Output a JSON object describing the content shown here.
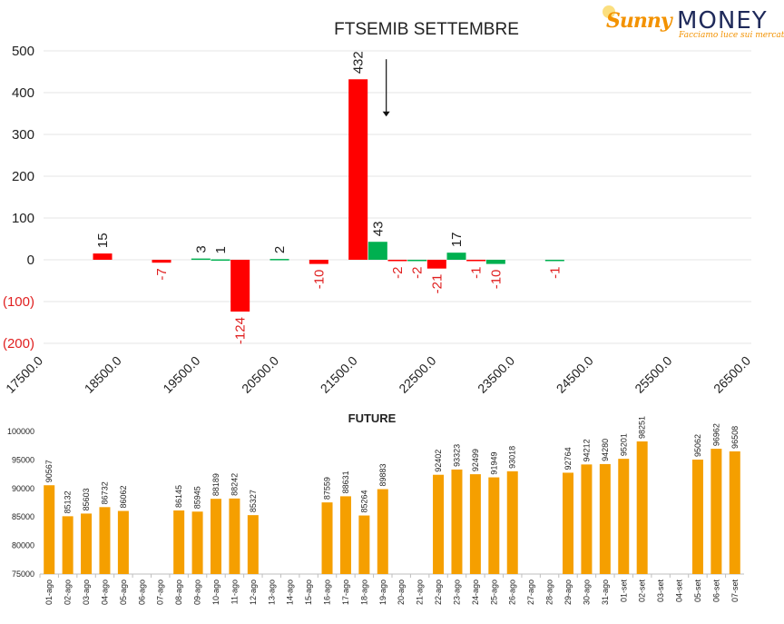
{
  "logo": {
    "brand_a": "Sunny",
    "brand_b": "MONEY",
    "tagline": "Facciamo luce sui mercati"
  },
  "colors": {
    "red": "#ff0000",
    "green": "#00b050",
    "orange": "#f59f00",
    "negative_label": "#e02020",
    "grid": "#e6e6e6",
    "text": "#222222"
  },
  "chart_data": [
    {
      "type": "bar",
      "title": "FTSEMIB SETTEMBRE",
      "ylim": [
        -200,
        500
      ],
      "y_ticks": [
        {
          "value": 500,
          "label": "500"
        },
        {
          "value": 400,
          "label": "400"
        },
        {
          "value": 300,
          "label": "300"
        },
        {
          "value": 200,
          "label": "200"
        },
        {
          "value": 100,
          "label": "100"
        },
        {
          "value": 0,
          "label": "0"
        },
        {
          "value": -100,
          "label": "(100)"
        },
        {
          "value": -200,
          "label": "(200)"
        }
      ],
      "xlim": [
        17500,
        26500
      ],
      "x_ticks": [
        "17500.0",
        "18500.0",
        "19500.0",
        "20500.0",
        "21500.0",
        "22500.0",
        "23500.0",
        "24500.0",
        "25500.0",
        "26500.0"
      ],
      "grid": true,
      "annotation": "down-arrow beside 432 bar",
      "bars": [
        {
          "strike": 18250,
          "value": 15,
          "color": "red",
          "label": "15"
        },
        {
          "strike": 19000,
          "value": -7,
          "color": "red",
          "label": "-7"
        },
        {
          "strike": 19500,
          "value": 3,
          "color": "green",
          "label": "3"
        },
        {
          "strike": 19750,
          "value": 1,
          "color": "green",
          "label": "1"
        },
        {
          "strike": 20000,
          "value": -124,
          "color": "red",
          "label": "-124"
        },
        {
          "strike": 20500,
          "value": 2,
          "color": "green",
          "label": "2"
        },
        {
          "strike": 21000,
          "value": -10,
          "color": "red",
          "label": "-10"
        },
        {
          "strike": 21500,
          "value": 432,
          "color": "red",
          "label": "432"
        },
        {
          "strike": 21750,
          "value": 43,
          "color": "green",
          "label": "43"
        },
        {
          "strike": 22000,
          "value": -2,
          "color": "red",
          "label": "-2"
        },
        {
          "strike": 22250,
          "value": -2,
          "color": "green",
          "label": "-2"
        },
        {
          "strike": 22500,
          "value": -21,
          "color": "red",
          "label": "-21"
        },
        {
          "strike": 22750,
          "value": 17,
          "color": "green",
          "label": "17"
        },
        {
          "strike": 23000,
          "value": -1,
          "color": "red",
          "label": "-1"
        },
        {
          "strike": 23250,
          "value": -10,
          "color": "green",
          "label": "-10"
        },
        {
          "strike": 24000,
          "value": -1,
          "color": "green",
          "label": "-1"
        }
      ]
    },
    {
      "type": "bar",
      "title": "FUTURE",
      "ylim": [
        75000,
        100000
      ],
      "y_ticks": [
        "100000",
        "95000",
        "90000",
        "85000",
        "80000",
        "75000"
      ],
      "categories": [
        "01-ago",
        "02-ago",
        "03-ago",
        "04-ago",
        "05-ago",
        "06-ago",
        "07-ago",
        "08-ago",
        "09-ago",
        "10-ago",
        "11-ago",
        "12-ago",
        "13-ago",
        "14-ago",
        "15-ago",
        "16-ago",
        "17-ago",
        "18-ago",
        "19-ago",
        "20-ago",
        "21-ago",
        "22-ago",
        "23-ago",
        "24-ago",
        "25-ago",
        "26-ago",
        "27-ago",
        "28-ago",
        "29-ago",
        "30-ago",
        "31-ago",
        "01-set",
        "02-set",
        "03-set",
        "04-set",
        "05-set",
        "06-set",
        "07-set"
      ],
      "values": [
        90567,
        85132,
        85603,
        86732,
        86062,
        null,
        null,
        86145,
        85945,
        88189,
        88242,
        85327,
        null,
        null,
        null,
        87559,
        88631,
        85264,
        89883,
        null,
        null,
        92402,
        93323,
        92499,
        91949,
        93018,
        null,
        null,
        92764,
        94212,
        94280,
        95201,
        98251,
        null,
        null,
        95062,
        96962,
        96508
      ]
    }
  ]
}
